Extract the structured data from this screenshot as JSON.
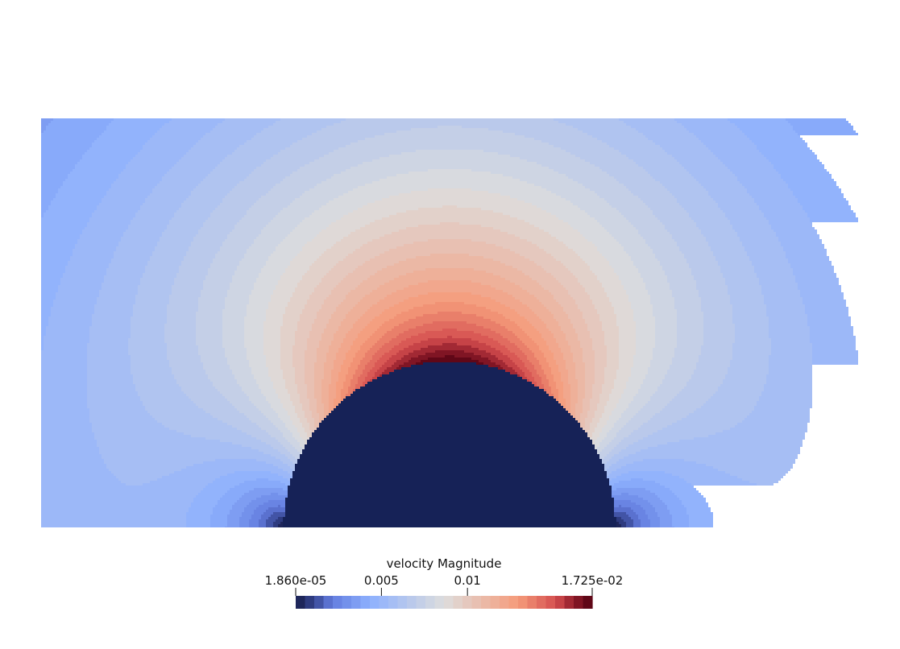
{
  "chart_data": {
    "type": "heatmap",
    "field": "velocity Magnitude",
    "colormap": "Cool to Warm",
    "range": [
      1.86e-05,
      0.01725
    ],
    "num_colors": 32,
    "colorbar": {
      "title": "velocity Magnitude",
      "orientation": "horizontal",
      "placement": "bottom-center",
      "ticks": [
        {
          "value": 1.86e-05,
          "label": "1.860e-05"
        },
        {
          "value": 0.005,
          "label": "0.005"
        },
        {
          "value": 0.01,
          "label": "0.01"
        },
        {
          "value": 0.01725,
          "label": "1.725e-02"
        }
      ]
    },
    "domain": {
      "obstacle": "semicircle"
    },
    "background": "#ffffff"
  }
}
